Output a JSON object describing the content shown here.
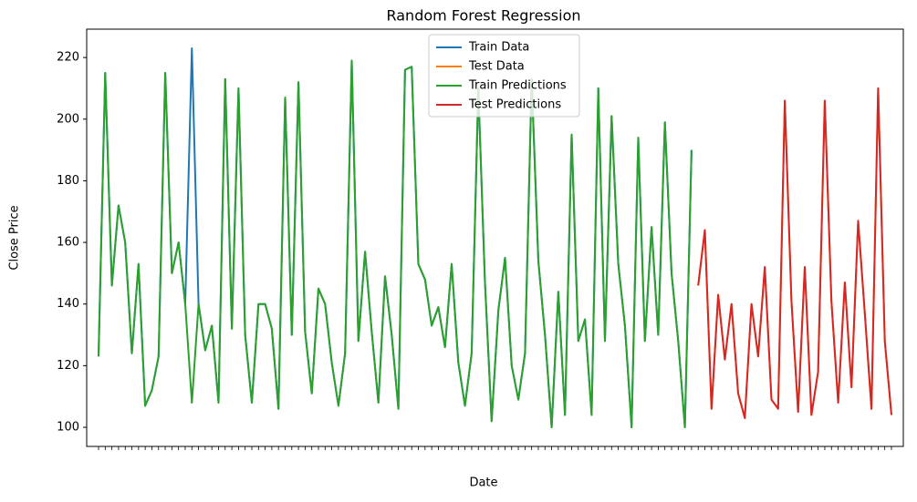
{
  "chart_data": {
    "type": "line",
    "title": "Random Forest Regression",
    "x_label": "Date",
    "y_label": "Close Price",
    "categories": [
      null,
      null,
      null,
      null,
      null,
      null,
      null,
      null,
      null,
      null,
      null,
      null,
      null,
      null,
      null,
      null,
      null,
      null,
      null,
      null,
      null,
      null,
      null,
      null,
      null,
      null,
      null,
      null,
      null,
      null,
      null,
      null,
      null,
      null,
      null,
      null,
      null,
      null,
      null,
      null,
      null,
      null,
      null,
      null,
      null,
      null,
      null,
      null,
      null,
      null,
      null,
      null,
      null,
      null,
      null,
      null,
      null,
      null,
      null,
      null,
      null,
      null,
      null,
      null,
      null,
      null,
      null,
      null,
      null,
      null,
      null,
      null,
      null,
      null,
      null,
      null,
      null,
      null,
      null,
      null,
      null,
      null,
      null,
      null,
      null,
      null,
      null,
      null,
      null,
      null,
      null,
      null,
      null,
      null,
      null,
      null,
      null,
      null,
      null,
      null,
      null,
      null,
      null,
      null,
      null,
      null,
      null,
      null,
      null,
      null,
      null,
      null,
      null,
      null,
      null,
      null,
      null,
      null,
      null,
      null
    ],
    "series": [
      {
        "name": "Train Data",
        "color": "#1f77b4",
        "values": [
          123,
          215,
          146,
          172,
          160,
          124,
          153,
          107,
          112,
          123,
          215,
          150,
          160,
          140,
          223,
          140,
          125,
          133,
          108,
          213,
          132,
          210,
          130,
          108,
          140,
          140,
          132,
          106,
          207,
          130,
          212,
          131,
          111,
          145,
          140,
          121,
          107,
          124,
          219,
          128,
          157,
          131,
          108,
          149,
          130,
          106,
          216,
          217,
          153,
          148,
          133,
          139,
          126,
          153,
          121,
          107,
          124,
          210,
          147,
          102,
          138,
          155,
          120,
          109,
          124,
          213,
          154,
          130,
          100,
          144,
          104,
          195,
          128,
          135,
          104,
          210,
          128,
          201,
          153,
          133,
          100,
          194,
          128,
          165,
          130,
          199,
          150,
          128,
          100,
          190,
          null,
          null,
          null,
          null,
          null,
          null,
          null,
          null,
          null,
          null,
          null,
          null,
          null,
          null,
          null,
          null,
          null,
          null,
          null,
          null,
          null,
          null,
          null,
          null,
          null,
          null,
          null,
          null,
          null,
          null
        ]
      },
      {
        "name": "Test Data",
        "color": "#ff7f0e",
        "values": [
          null,
          null,
          null,
          null,
          null,
          null,
          null,
          null,
          null,
          null,
          null,
          null,
          null,
          null,
          null,
          null,
          null,
          null,
          null,
          null,
          null,
          null,
          null,
          null,
          null,
          null,
          null,
          null,
          null,
          null,
          null,
          null,
          null,
          null,
          null,
          null,
          null,
          null,
          null,
          null,
          null,
          null,
          null,
          null,
          null,
          null,
          null,
          null,
          null,
          null,
          null,
          null,
          null,
          null,
          null,
          null,
          null,
          null,
          null,
          null,
          null,
          null,
          null,
          null,
          null,
          null,
          null,
          null,
          null,
          null,
          null,
          null,
          null,
          null,
          null,
          null,
          null,
          null,
          null,
          null,
          null,
          null,
          null,
          null,
          null,
          null,
          null,
          null,
          null,
          null,
          146,
          164,
          106,
          143,
          122,
          140,
          111,
          103,
          140,
          123,
          152,
          109,
          106,
          206,
          141,
          105,
          152,
          104,
          118,
          206,
          141,
          108,
          147,
          113,
          167,
          137,
          106,
          210,
          128,
          104
        ]
      },
      {
        "name": "Train Predictions",
        "color": "#2ca02c",
        "values": [
          123,
          215,
          146,
          172,
          160,
          124,
          153,
          107,
          112,
          123,
          215,
          150,
          160,
          140,
          108,
          140,
          125,
          133,
          108,
          213,
          132,
          210,
          130,
          108,
          140,
          140,
          132,
          106,
          207,
          130,
          212,
          131,
          111,
          145,
          140,
          121,
          107,
          124,
          219,
          128,
          157,
          131,
          108,
          149,
          130,
          106,
          216,
          217,
          153,
          148,
          133,
          139,
          126,
          153,
          121,
          107,
          124,
          210,
          147,
          102,
          138,
          155,
          120,
          109,
          124,
          213,
          154,
          130,
          100,
          144,
          104,
          195,
          128,
          135,
          104,
          210,
          128,
          201,
          153,
          133,
          100,
          194,
          128,
          165,
          130,
          199,
          150,
          128,
          100,
          190,
          null,
          null,
          null,
          null,
          null,
          null,
          null,
          null,
          null,
          null,
          null,
          null,
          null,
          null,
          null,
          null,
          null,
          null,
          null,
          null,
          null,
          null,
          null,
          null,
          null,
          null,
          null,
          null,
          null,
          null
        ]
      },
      {
        "name": "Test Predictions",
        "color": "#d62728",
        "values": [
          null,
          null,
          null,
          null,
          null,
          null,
          null,
          null,
          null,
          null,
          null,
          null,
          null,
          null,
          null,
          null,
          null,
          null,
          null,
          null,
          null,
          null,
          null,
          null,
          null,
          null,
          null,
          null,
          null,
          null,
          null,
          null,
          null,
          null,
          null,
          null,
          null,
          null,
          null,
          null,
          null,
          null,
          null,
          null,
          null,
          null,
          null,
          null,
          null,
          null,
          null,
          null,
          null,
          null,
          null,
          null,
          null,
          null,
          null,
          null,
          null,
          null,
          null,
          null,
          null,
          null,
          null,
          null,
          null,
          null,
          null,
          null,
          null,
          null,
          null,
          null,
          null,
          null,
          null,
          null,
          null,
          null,
          null,
          null,
          null,
          null,
          null,
          null,
          null,
          null,
          146,
          164,
          106,
          143,
          122,
          140,
          111,
          103,
          140,
          123,
          152,
          109,
          106,
          206,
          141,
          105,
          152,
          104,
          118,
          206,
          141,
          108,
          147,
          113,
          167,
          137,
          106,
          210,
          128,
          104
        ]
      }
    ],
    "ylim": [
      93.8,
      229.2
    ],
    "yticks": [
      100,
      120,
      140,
      160,
      180,
      200,
      220
    ],
    "legend": "upper center"
  }
}
